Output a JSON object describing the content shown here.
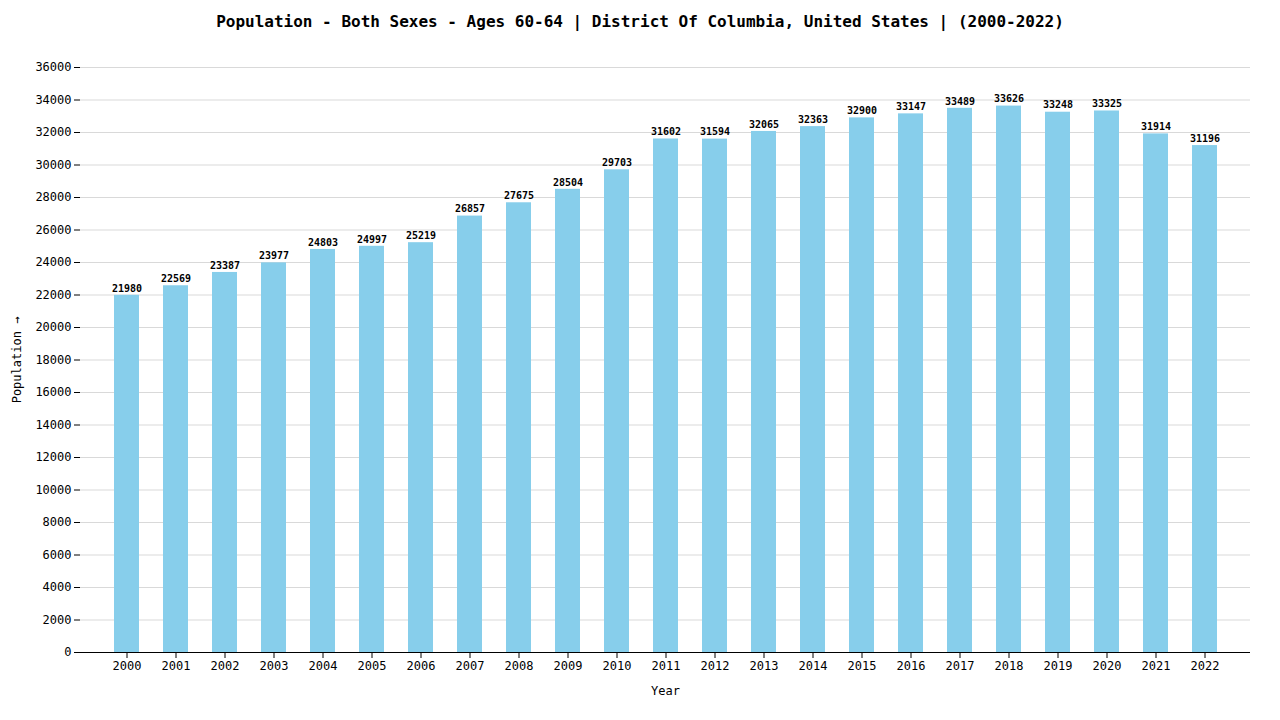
{
  "chart_data": {
    "type": "bar",
    "title": "Population - Both Sexes - Ages 60-64 | District Of Columbia, United States |  (2000-2022)",
    "xlabel": "Year",
    "ylabel": "Population",
    "categories": [
      "2000",
      "2001",
      "2002",
      "2003",
      "2004",
      "2005",
      "2006",
      "2007",
      "2008",
      "2009",
      "2010",
      "2011",
      "2012",
      "2013",
      "2014",
      "2015",
      "2016",
      "2017",
      "2018",
      "2019",
      "2020",
      "2021",
      "2022"
    ],
    "values": [
      21980,
      22569,
      23387,
      23977,
      24803,
      24997,
      25219,
      26857,
      27675,
      28504,
      29703,
      31602,
      31594,
      32065,
      32363,
      32900,
      33147,
      33489,
      33626,
      33248,
      33325,
      31914,
      31196
    ],
    "color": "#87ceeb",
    "ylim": [
      0,
      36000
    ],
    "yticks": [
      0,
      2000,
      4000,
      6000,
      8000,
      10000,
      12000,
      14000,
      16000,
      18000,
      20000,
      22000,
      24000,
      26000,
      28000,
      30000,
      32000,
      34000,
      36000
    ],
    "grid": true,
    "data_labels": true
  }
}
